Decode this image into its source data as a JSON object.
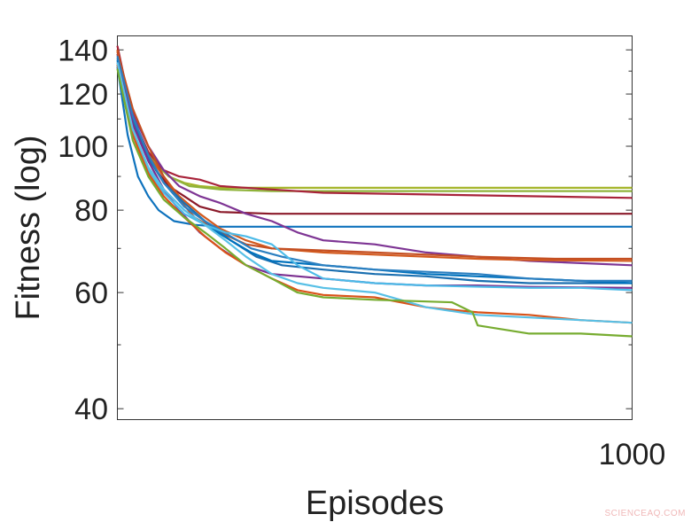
{
  "chart_data": {
    "type": "line",
    "xlabel": "Episodes",
    "ylabel": "Fitness (log)",
    "yscale": "log",
    "xlim": [
      0,
      1000
    ],
    "ylim": [
      38.5,
      147
    ],
    "x_tick_labels": [
      "1000"
    ],
    "y_tick_labels": [
      "40",
      "60",
      "80",
      "100",
      "120",
      "140"
    ],
    "grid": false,
    "series": [
      {
        "color": "#a5b52a",
        "points": [
          [
            0,
            140
          ],
          [
            20,
            118
          ],
          [
            40,
            105
          ],
          [
            60,
            98
          ],
          [
            80,
            93
          ],
          [
            100,
            90
          ],
          [
            130,
            88
          ],
          [
            160,
            87
          ],
          [
            200,
            86.5
          ],
          [
            300,
            86.5
          ],
          [
            600,
            86.5
          ],
          [
            1000,
            86.5
          ]
        ]
      },
      {
        "color": "#8fb33a",
        "points": [
          [
            0,
            138
          ],
          [
            25,
            112
          ],
          [
            50,
            100
          ],
          [
            75,
            94
          ],
          [
            100,
            90
          ],
          [
            140,
            87
          ],
          [
            200,
            86
          ],
          [
            300,
            85.5
          ],
          [
            600,
            85.5
          ],
          [
            1000,
            85.5
          ]
        ]
      },
      {
        "color": "#a8233a",
        "points": [
          [
            0,
            142
          ],
          [
            20,
            120
          ],
          [
            40,
            106
          ],
          [
            60,
            98
          ],
          [
            90,
            92
          ],
          [
            120,
            90
          ],
          [
            160,
            89
          ],
          [
            200,
            87
          ],
          [
            300,
            86
          ],
          [
            400,
            85
          ],
          [
            600,
            84.5
          ],
          [
            800,
            84
          ],
          [
            1000,
            83.5
          ]
        ]
      },
      {
        "color": "#8b1a2a",
        "points": [
          [
            0,
            140
          ],
          [
            25,
            115
          ],
          [
            50,
            100
          ],
          [
            75,
            92
          ],
          [
            100,
            87
          ],
          [
            130,
            84
          ],
          [
            160,
            81
          ],
          [
            200,
            79.5
          ],
          [
            300,
            79
          ],
          [
            600,
            79
          ],
          [
            1000,
            79
          ]
        ]
      },
      {
        "color": "#0e72bd",
        "points": [
          [
            0,
            132
          ],
          [
            20,
            104
          ],
          [
            40,
            90
          ],
          [
            60,
            84
          ],
          [
            80,
            80
          ],
          [
            110,
            77
          ],
          [
            150,
            76
          ],
          [
            200,
            75.5
          ],
          [
            400,
            75.5
          ],
          [
            600,
            75.5
          ],
          [
            1000,
            75.5
          ]
        ]
      },
      {
        "color": "#7e3594",
        "points": [
          [
            0,
            138
          ],
          [
            30,
            112
          ],
          [
            60,
            100
          ],
          [
            90,
            92
          ],
          [
            120,
            87
          ],
          [
            160,
            84
          ],
          [
            200,
            82
          ],
          [
            250,
            79
          ],
          [
            300,
            77
          ],
          [
            350,
            74
          ],
          [
            400,
            72
          ],
          [
            500,
            71
          ],
          [
            600,
            69
          ],
          [
            700,
            68
          ],
          [
            800,
            67
          ],
          [
            900,
            66.5
          ],
          [
            1000,
            66
          ]
        ]
      },
      {
        "color": "#d35a1e",
        "points": [
          [
            0,
            140
          ],
          [
            30,
            110
          ],
          [
            60,
            97
          ],
          [
            90,
            90
          ],
          [
            120,
            84
          ],
          [
            160,
            79
          ],
          [
            200,
            75
          ],
          [
            250,
            72
          ],
          [
            300,
            70
          ],
          [
            400,
            69
          ],
          [
            500,
            68.5
          ],
          [
            600,
            68
          ],
          [
            700,
            67.5
          ],
          [
            800,
            67.2
          ],
          [
            1000,
            67
          ]
        ]
      },
      {
        "color": "#c44f22",
        "points": [
          [
            0,
            139
          ],
          [
            30,
            114
          ],
          [
            60,
            100
          ],
          [
            90,
            90
          ],
          [
            120,
            83
          ],
          [
            150,
            78
          ],
          [
            200,
            74
          ],
          [
            250,
            71
          ],
          [
            300,
            70
          ],
          [
            400,
            69.5
          ],
          [
            500,
            69
          ],
          [
            600,
            68.5
          ],
          [
            700,
            68
          ],
          [
            850,
            67.5
          ],
          [
            1000,
            67.5
          ]
        ]
      },
      {
        "color": "#1a6fb0",
        "points": [
          [
            0,
            136
          ],
          [
            30,
            110
          ],
          [
            60,
            96
          ],
          [
            90,
            88
          ],
          [
            130,
            82
          ],
          [
            170,
            77
          ],
          [
            220,
            72
          ],
          [
            270,
            68
          ],
          [
            320,
            66
          ],
          [
            400,
            65
          ],
          [
            500,
            64
          ],
          [
            600,
            63.5
          ],
          [
            700,
            62.5
          ],
          [
            800,
            62
          ],
          [
            900,
            62
          ],
          [
            1000,
            62
          ]
        ]
      },
      {
        "color": "#0072bd",
        "points": [
          [
            0,
            135
          ],
          [
            30,
            108
          ],
          [
            60,
            95
          ],
          [
            90,
            86
          ],
          [
            130,
            80
          ],
          [
            170,
            76
          ],
          [
            220,
            72
          ],
          [
            260,
            69
          ],
          [
            300,
            67
          ],
          [
            400,
            66
          ],
          [
            500,
            65
          ],
          [
            600,
            64
          ],
          [
            700,
            63.5
          ],
          [
            800,
            63
          ],
          [
            900,
            62.5
          ],
          [
            1000,
            62
          ]
        ]
      },
      {
        "color": "#2b7fc0",
        "points": [
          [
            0,
            137
          ],
          [
            30,
            111
          ],
          [
            60,
            97
          ],
          [
            90,
            88
          ],
          [
            130,
            81
          ],
          [
            170,
            77
          ],
          [
            220,
            73
          ],
          [
            260,
            70
          ],
          [
            320,
            68
          ],
          [
            400,
            66
          ],
          [
            500,
            65
          ],
          [
            600,
            64.5
          ],
          [
            700,
            64
          ],
          [
            800,
            63
          ],
          [
            900,
            62.5
          ],
          [
            1000,
            62.5
          ]
        ]
      },
      {
        "color": "#7b2f90",
        "points": [
          [
            0,
            134
          ],
          [
            30,
            108
          ],
          [
            60,
            95
          ],
          [
            90,
            86
          ],
          [
            120,
            80
          ],
          [
            160,
            74
          ],
          [
            200,
            70
          ],
          [
            250,
            66
          ],
          [
            300,
            64
          ],
          [
            400,
            63
          ],
          [
            500,
            62
          ],
          [
            600,
            61.5
          ],
          [
            700,
            61.5
          ],
          [
            800,
            61.2
          ],
          [
            1000,
            61
          ]
        ]
      },
      {
        "color": "#4dbbe8",
        "points": [
          [
            0,
            133
          ],
          [
            30,
            105
          ],
          [
            60,
            92
          ],
          [
            90,
            85
          ],
          [
            130,
            79
          ],
          [
            170,
            76
          ],
          [
            210,
            74
          ],
          [
            250,
            73
          ],
          [
            300,
            71
          ],
          [
            350,
            66
          ],
          [
            400,
            63
          ],
          [
            500,
            62
          ],
          [
            600,
            61.5
          ],
          [
            800,
            61
          ],
          [
            900,
            61
          ],
          [
            1000,
            60.5
          ]
        ]
      },
      {
        "color": "#d95319",
        "points": [
          [
            0,
            133
          ],
          [
            30,
            104
          ],
          [
            60,
            91
          ],
          [
            90,
            84
          ],
          [
            130,
            78
          ],
          [
            170,
            73
          ],
          [
            210,
            69
          ],
          [
            250,
            66
          ],
          [
            300,
            63
          ],
          [
            350,
            60.5
          ],
          [
            400,
            59.5
          ],
          [
            500,
            59
          ],
          [
            600,
            57
          ],
          [
            700,
            56
          ],
          [
            800,
            55.5
          ],
          [
            900,
            54.5
          ],
          [
            1000,
            54
          ]
        ]
      },
      {
        "color": "#58c0e6",
        "points": [
          [
            0,
            134
          ],
          [
            30,
            106
          ],
          [
            60,
            93
          ],
          [
            90,
            86
          ],
          [
            130,
            80
          ],
          [
            170,
            76
          ],
          [
            210,
            72
          ],
          [
            250,
            68
          ],
          [
            300,
            64
          ],
          [
            350,
            62
          ],
          [
            400,
            61
          ],
          [
            500,
            60
          ],
          [
            600,
            57
          ],
          [
            700,
            55.5
          ],
          [
            800,
            55
          ],
          [
            900,
            54.5
          ],
          [
            1000,
            54
          ]
        ]
      },
      {
        "color": "#77ac30",
        "points": [
          [
            0,
            131
          ],
          [
            30,
            102
          ],
          [
            60,
            90
          ],
          [
            90,
            83
          ],
          [
            130,
            78
          ],
          [
            170,
            74
          ],
          [
            210,
            70
          ],
          [
            250,
            66
          ],
          [
            300,
            63
          ],
          [
            350,
            60
          ],
          [
            400,
            59
          ],
          [
            500,
            58.5
          ],
          [
            650,
            58
          ],
          [
            690,
            56
          ],
          [
            700,
            53.5
          ],
          [
            800,
            52
          ],
          [
            900,
            52
          ],
          [
            1000,
            51.5
          ]
        ]
      }
    ]
  },
  "watermark": "SCIENCEAQ.COM"
}
